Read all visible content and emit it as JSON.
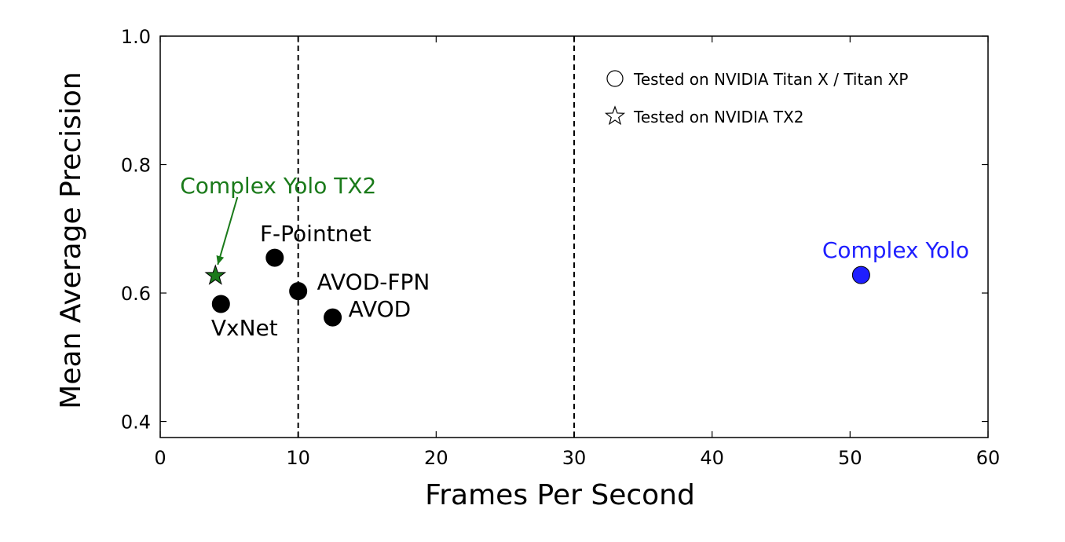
{
  "chart_data": {
    "type": "scatter",
    "title": "",
    "xlabel": "Frames Per Second",
    "ylabel": "Mean Average Precision",
    "xlim": [
      0,
      60
    ],
    "ylim": [
      0.375,
      1.0
    ],
    "x_ticks": [
      0,
      10,
      20,
      30,
      40,
      50,
      60
    ],
    "x_tick_labels": [
      "0",
      "10",
      "20",
      "30",
      "40",
      "50",
      "60"
    ],
    "y_ticks": [
      0.4,
      0.6,
      0.8,
      1.0
    ],
    "y_tick_labels": [
      "0.4",
      "0.6",
      "0.8",
      "1.0"
    ],
    "grid": false,
    "reference_lines_x": [
      10,
      30
    ],
    "points": [
      {
        "label": "VxNet",
        "x": 4.4,
        "y": 0.583,
        "marker": "circle",
        "color": "#000000"
      },
      {
        "label": "F-Pointnet",
        "x": 8.3,
        "y": 0.655,
        "marker": "circle",
        "color": "#000000"
      },
      {
        "label": "AVOD-FPN",
        "x": 10.0,
        "y": 0.603,
        "marker": "circle",
        "color": "#000000"
      },
      {
        "label": "AVOD",
        "x": 12.5,
        "y": 0.562,
        "marker": "circle",
        "color": "#000000"
      },
      {
        "label": "Complex Yolo",
        "x": 50.8,
        "y": 0.628,
        "marker": "circle",
        "color": "#1f1fff"
      },
      {
        "label": "Complex Yolo TX2",
        "x": 4.0,
        "y": 0.627,
        "marker": "star",
        "color": "#1a7a1a"
      }
    ],
    "legend": {
      "placement": "top-right",
      "entries": [
        {
          "marker": "circle-outline",
          "label": "Tested on NVIDIA Titan X / Titan XP"
        },
        {
          "marker": "star-outline",
          "label": "Tested on NVIDIA TX2"
        }
      ]
    }
  }
}
